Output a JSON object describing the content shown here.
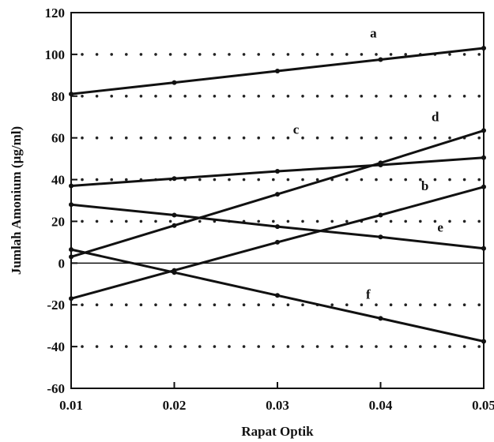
{
  "chart_data": {
    "type": "line",
    "title": "",
    "xlabel": "Rapat Optik",
    "ylabel": "Jumlah Amonium (µg/ml)",
    "xlim": [
      0.01,
      0.05
    ],
    "ylim": [
      -60,
      120
    ],
    "x_ticks": [
      0.01,
      0.02,
      0.03,
      0.04,
      0.05
    ],
    "x_tick_labels": [
      "0.01",
      "0.02",
      "0.03",
      "0.04",
      "0.05"
    ],
    "y_ticks": [
      -60,
      -40,
      -20,
      0,
      20,
      40,
      60,
      80,
      100,
      120
    ],
    "y_tick_labels": [
      "-60",
      "-40",
      "-20",
      "0",
      "20",
      "40",
      "60",
      "80",
      "100",
      "120"
    ],
    "grid": "dotted horizontal",
    "zero_line": true,
    "x": [
      0.01,
      0.02,
      0.03,
      0.04,
      0.05
    ],
    "series": [
      {
        "name": "a",
        "values": [
          81,
          86.5,
          92,
          97.5,
          103
        ]
      },
      {
        "name": "b",
        "values": [
          -17,
          -3.5,
          10,
          23,
          36.5
        ]
      },
      {
        "name": "c",
        "values": [
          37,
          40.5,
          44,
          47,
          50.5
        ]
      },
      {
        "name": "d",
        "values": [
          3,
          18,
          33,
          48,
          63.5
        ]
      },
      {
        "name": "e",
        "values": [
          28,
          23,
          17.5,
          12.5,
          7
        ]
      },
      {
        "name": "f",
        "values": [
          6.5,
          -4.5,
          -15.5,
          -26.5,
          -37.5
        ]
      }
    ],
    "label_positions": [
      {
        "name": "a",
        "x": 0.0393,
        "y": 108
      },
      {
        "name": "b",
        "x": 0.0443,
        "y": 35
      },
      {
        "name": "c",
        "x": 0.0318,
        "y": 62
      },
      {
        "name": "d",
        "x": 0.0453,
        "y": 68
      },
      {
        "name": "e",
        "x": 0.0458,
        "y": 15
      },
      {
        "name": "f",
        "x": 0.0388,
        "y": -17
      }
    ]
  }
}
